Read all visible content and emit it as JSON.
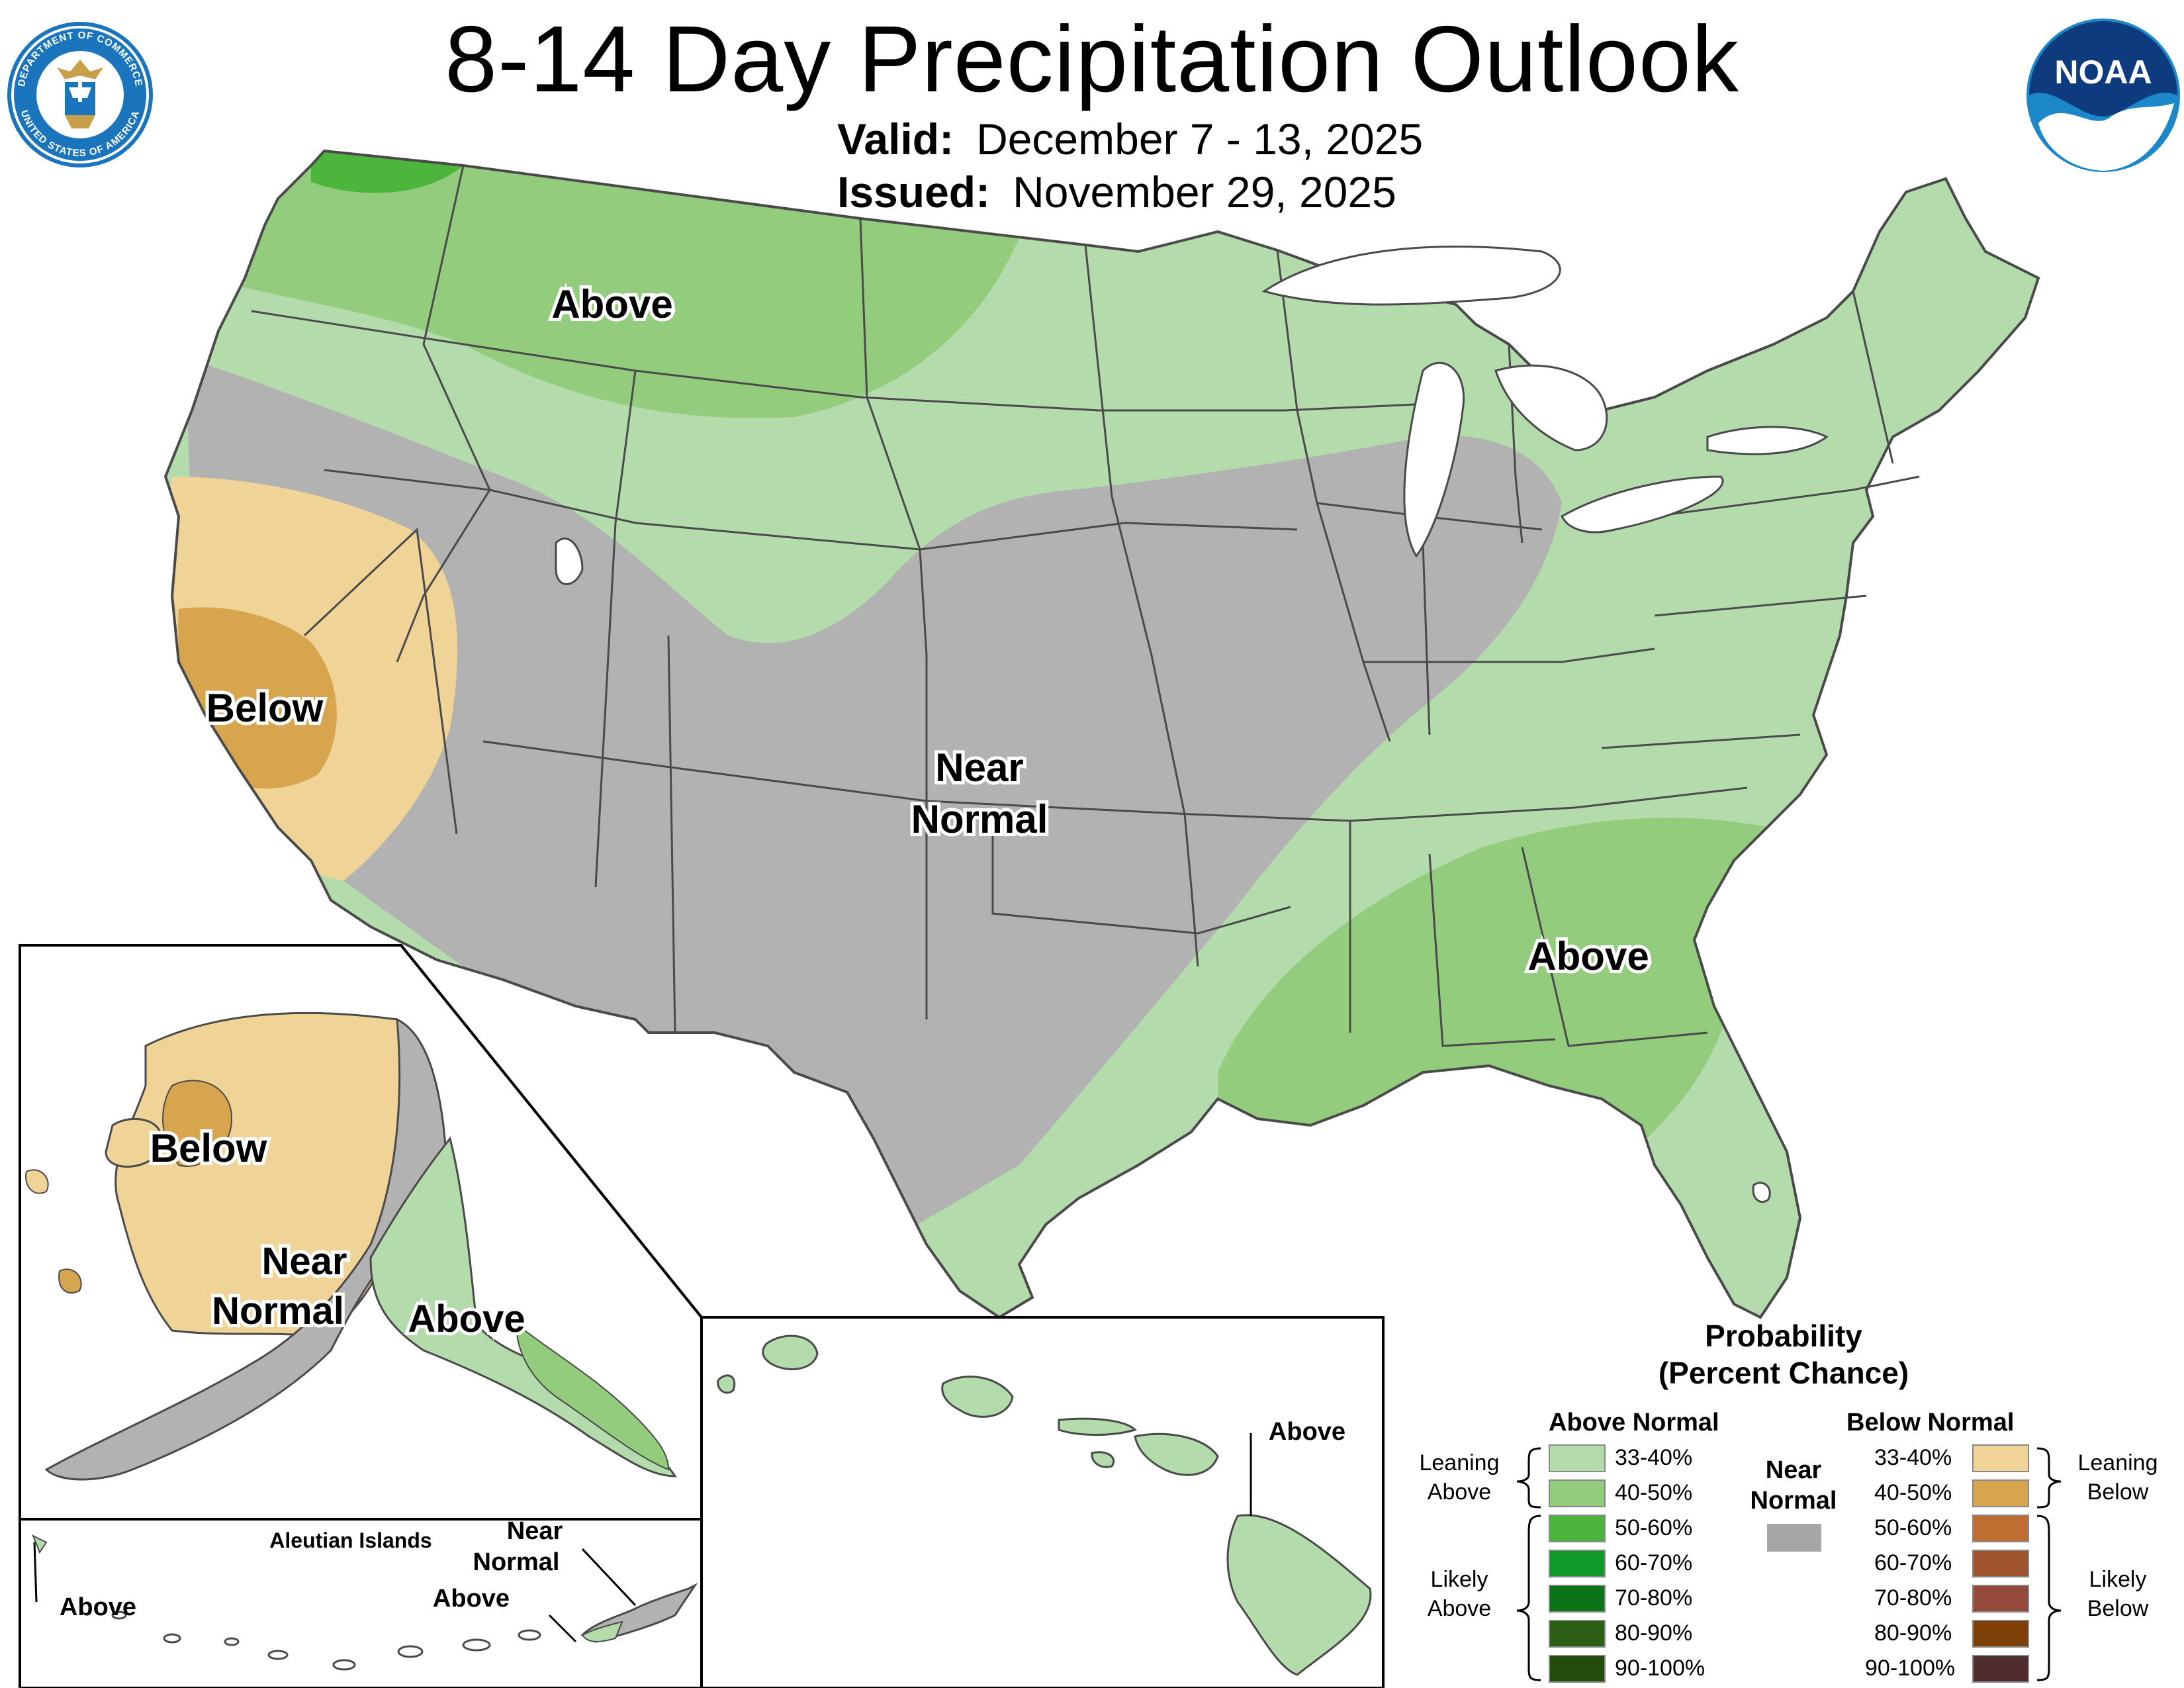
{
  "title": "8-14 Day Precipitation Outlook",
  "valid": {
    "label": "Valid:",
    "value": "December 7 - 13, 2025"
  },
  "issued": {
    "label": "Issued:",
    "value": "November 29, 2025"
  },
  "logos": {
    "commerce_seal": {
      "text_top": "DEPARTMENT OF COMMERCE",
      "text_bottom": "UNITED STATES OF AMERICA"
    },
    "noaa": {
      "text": "NOAA"
    }
  },
  "map_labels": {
    "conus_above_north": "Above",
    "conus_below": "Below",
    "conus_near_normal": [
      "Near",
      "Normal"
    ],
    "conus_above_south": "Above",
    "alaska_below": "Below",
    "alaska_near_normal": [
      "Near",
      "Normal"
    ],
    "alaska_above": "Above",
    "aleutian_title": "Aleutian Islands",
    "aleutian_above_west": "Above",
    "aleutian_near_normal": [
      "Near",
      "Normal"
    ],
    "aleutian_above_east": "Above",
    "hawaii_above": "Above"
  },
  "colors": {
    "leaning_above": "#b3dbab",
    "above_40_50": "#92cc7c",
    "above_50_60": "#4cb53b",
    "above_60_70": "#119a2a",
    "above_70_80": "#0b7419",
    "above_80_90": "#2e5f16",
    "above_90_100": "#244d0d",
    "near_normal": "#b2b2b2",
    "near_normal_legend": "#a6a6a6",
    "leaning_below": "#f0d396",
    "below_40_50": "#d8a54f",
    "below_50_60": "#c06d32",
    "below_60_70": "#a0542e",
    "below_70_80": "#95493c",
    "below_80_90": "#7e4109",
    "below_90_100": "#4f2c2f",
    "border": "#4a4a4a",
    "noaa_blue": "#1c87c9"
  },
  "legend": {
    "title": [
      "Probability",
      "(Percent Chance)"
    ],
    "above_header": "Above Normal",
    "below_header": "Below Normal",
    "near_header": [
      "Near",
      "Normal"
    ],
    "above_items": [
      "33-40%",
      "40-50%",
      "50-60%",
      "60-70%",
      "70-80%",
      "80-90%",
      "90-100%"
    ],
    "below_items": [
      "33-40%",
      "40-50%",
      "50-60%",
      "60-70%",
      "70-80%",
      "80-90%",
      "90-100%"
    ],
    "leaning_above": [
      "Leaning",
      "Above"
    ],
    "likely_above": [
      "Likely",
      "Above"
    ],
    "leaning_below": [
      "Leaning",
      "Below"
    ],
    "likely_below": [
      "Likely",
      "Below"
    ]
  }
}
